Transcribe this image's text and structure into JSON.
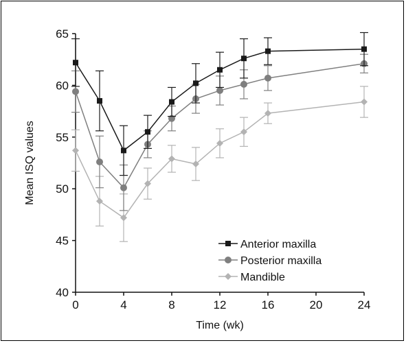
{
  "chart_data": {
    "type": "line",
    "xlabel": "Time (wk)",
    "ylabel": "Mean ISQ values",
    "xlim": [
      0,
      24
    ],
    "ylim": [
      40,
      65
    ],
    "xticks": [
      0,
      4,
      8,
      12,
      16,
      20,
      24
    ],
    "yticks": [
      40,
      45,
      50,
      55,
      60,
      65
    ],
    "grid": false,
    "legend_position": "lower-right",
    "series": [
      {
        "name": "Anterior maxilla",
        "color": "#1a1a1a",
        "marker": "square",
        "x": [
          0,
          2,
          4,
          6,
          8,
          10,
          12,
          14,
          16,
          24
        ],
        "y": [
          62.2,
          58.5,
          53.7,
          55.5,
          58.4,
          60.2,
          61.5,
          62.6,
          63.3,
          63.5
        ],
        "error": [
          2.3,
          2.9,
          2.4,
          1.6,
          1.4,
          1.9,
          1.7,
          1.9,
          1.3,
          1.6
        ]
      },
      {
        "name": "Posterior maxilla",
        "color": "#7f7f7f",
        "marker": "circle",
        "x": [
          0,
          2,
          4,
          6,
          8,
          10,
          12,
          14,
          16,
          24
        ],
        "y": [
          59.4,
          52.6,
          50.1,
          54.3,
          56.8,
          58.7,
          59.5,
          60.1,
          60.7,
          62.1
        ],
        "error": [
          2.0,
          2.5,
          2.2,
          1.3,
          1.2,
          1.4,
          1.4,
          1.4,
          1.2,
          0.9
        ]
      },
      {
        "name": "Mandible",
        "color": "#b3b3b3",
        "marker": "diamond",
        "x": [
          0,
          2,
          4,
          6,
          8,
          10,
          12,
          14,
          16,
          24
        ],
        "y": [
          53.7,
          48.8,
          47.2,
          50.5,
          52.9,
          52.4,
          54.4,
          55.5,
          57.3,
          58.4
        ],
        "error": [
          2.0,
          2.4,
          2.3,
          1.5,
          1.3,
          1.6,
          1.4,
          1.4,
          1.0,
          1.5
        ]
      }
    ]
  }
}
